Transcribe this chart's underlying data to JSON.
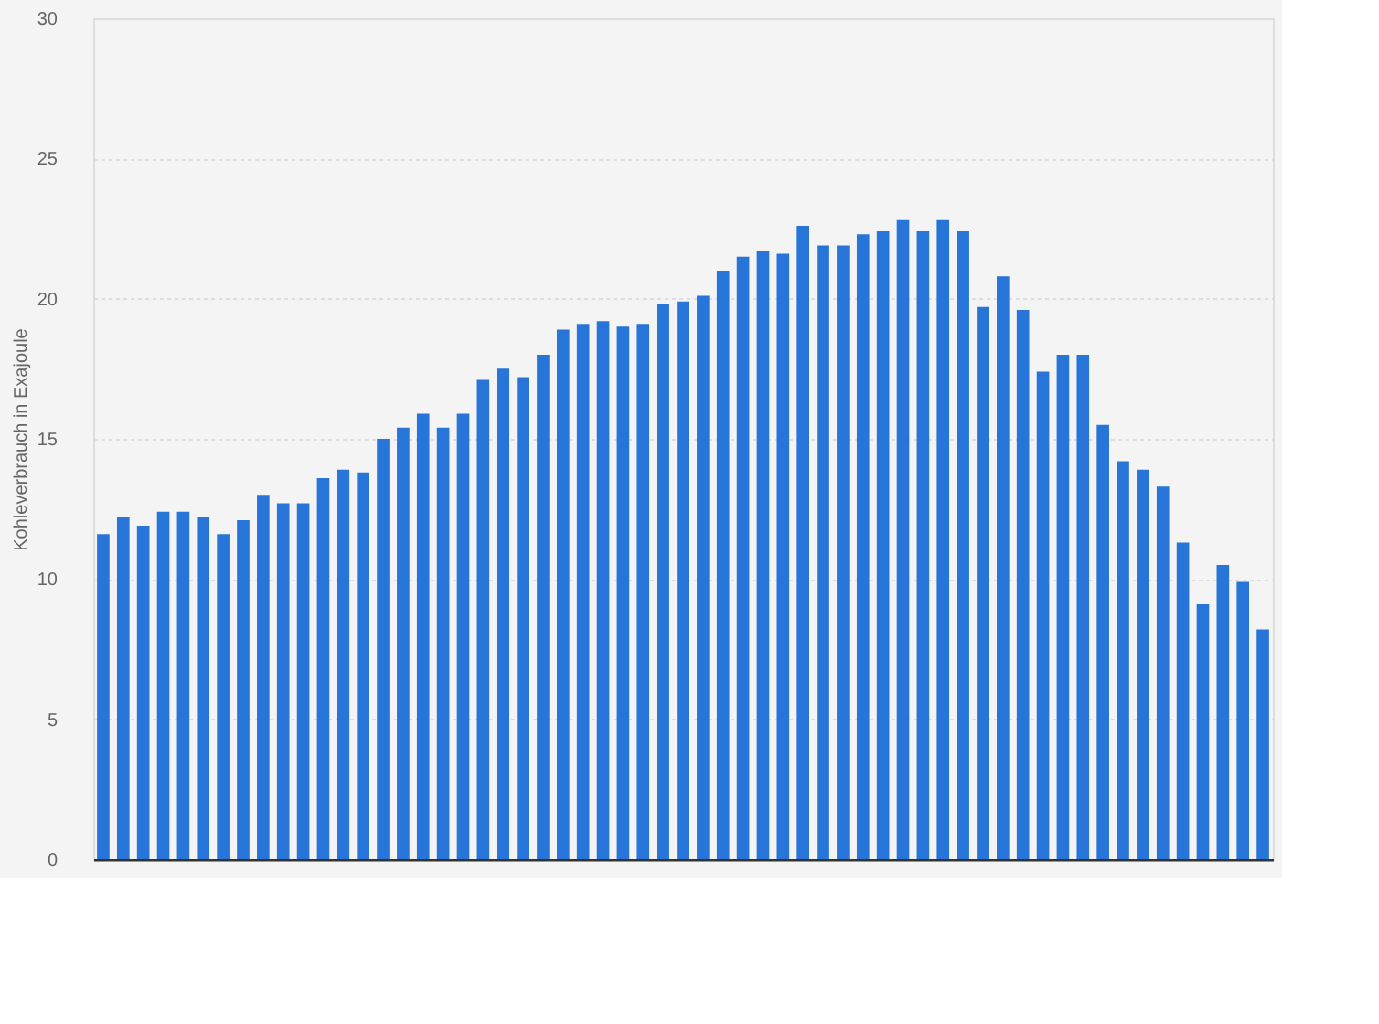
{
  "chart_data": {
    "type": "bar",
    "ylabel": "Kohleverbrauch in Exajoule",
    "categories": [
      null,
      null,
      null,
      null,
      null,
      null,
      null,
      null,
      null,
      null,
      null,
      null,
      null,
      null,
      null,
      null,
      null,
      null,
      null,
      null,
      null,
      null,
      null,
      null,
      null,
      null,
      null,
      null,
      null,
      null,
      null,
      null,
      null,
      null,
      null,
      null,
      null,
      null,
      null,
      null,
      null,
      null,
      null,
      null,
      null,
      null,
      null,
      null,
      null,
      null,
      null,
      null,
      null,
      null,
      null,
      null,
      null,
      null,
      null
    ],
    "values": [
      11.6,
      12.2,
      11.9,
      12.4,
      12.4,
      12.2,
      11.6,
      12.1,
      13.0,
      12.7,
      12.7,
      13.6,
      13.9,
      13.8,
      15.0,
      15.4,
      15.9,
      15.4,
      15.9,
      17.1,
      17.5,
      17.2,
      18.0,
      18.9,
      19.1,
      19.2,
      19.0,
      19.1,
      19.8,
      19.9,
      20.1,
      21.0,
      21.5,
      21.7,
      21.6,
      22.6,
      21.9,
      21.9,
      22.3,
      22.4,
      22.8,
      22.4,
      22.8,
      22.4,
      19.7,
      20.8,
      19.6,
      17.4,
      18.0,
      18.0,
      15.5,
      14.2,
      13.9,
      13.3,
      11.3,
      9.1,
      10.5,
      9.9,
      8.2
    ],
    "color": "#2775d9",
    "ylim": [
      0,
      30
    ],
    "yticks": [
      0,
      5,
      10,
      15,
      20,
      25,
      30
    ],
    "grid": "y",
    "tick_labels": "y"
  }
}
